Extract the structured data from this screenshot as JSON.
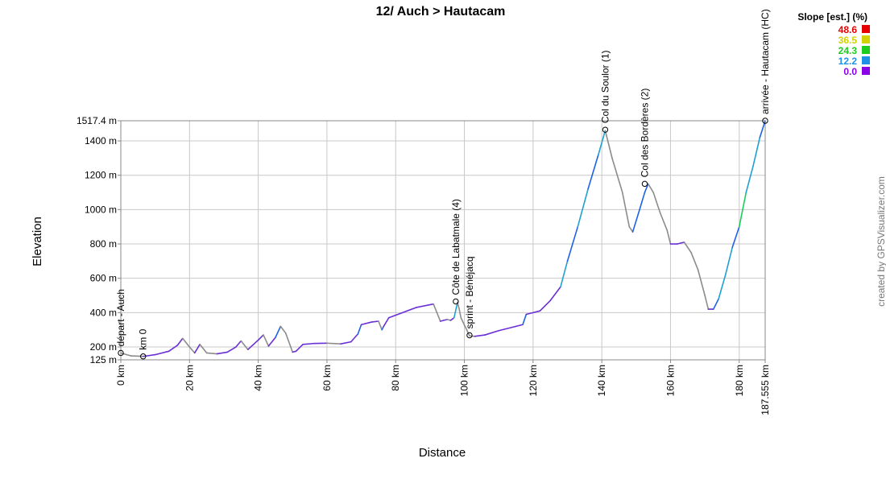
{
  "chart_data": {
    "type": "area",
    "title": "12/ Auch > Hautacam",
    "xlabel": "Distance",
    "ylabel": "Elevation",
    "xlim": [
      0,
      187.555
    ],
    "ylim": [
      125,
      1517.4
    ],
    "grid": true,
    "x_ticks": [
      {
        "value": 0,
        "label": "0 km"
      },
      {
        "value": 20,
        "label": "20 km"
      },
      {
        "value": 40,
        "label": "40 km"
      },
      {
        "value": 60,
        "label": "60 km"
      },
      {
        "value": 80,
        "label": "80 km"
      },
      {
        "value": 100,
        "label": "100 km"
      },
      {
        "value": 120,
        "label": "120 km"
      },
      {
        "value": 140,
        "label": "140 km"
      },
      {
        "value": 160,
        "label": "160 km"
      },
      {
        "value": 180,
        "label": "180 km"
      },
      {
        "value": 187.555,
        "label": "187.555 km"
      }
    ],
    "y_ticks": [
      {
        "value": 125,
        "label": "125 m"
      },
      {
        "value": 200,
        "label": "200 m"
      },
      {
        "value": 400,
        "label": "400 m"
      },
      {
        "value": 600,
        "label": "600 m"
      },
      {
        "value": 800,
        "label": "800 m"
      },
      {
        "value": 1000,
        "label": "1000 m"
      },
      {
        "value": 1200,
        "label": "1200 m"
      },
      {
        "value": 1400,
        "label": "1400 m"
      },
      {
        "value": 1517.4,
        "label": "1517.4 m"
      }
    ],
    "profile": {
      "x": [
        0,
        3,
        6.5,
        10,
        14,
        16.5,
        18,
        20,
        21.5,
        23,
        25,
        28,
        31,
        33.5,
        35,
        37,
        40,
        41.5,
        43,
        45,
        46.5,
        48,
        50,
        51,
        53,
        56,
        60,
        64,
        67,
        69,
        70,
        73,
        75,
        76,
        76.5,
        78,
        82,
        86,
        91,
        92,
        93,
        95,
        96,
        97,
        98,
        98.5,
        99,
        101.5,
        103,
        106,
        110,
        115,
        117,
        118,
        120,
        122,
        125,
        128,
        130,
        133,
        136,
        139,
        141,
        143,
        146,
        148,
        149,
        151,
        152.5,
        153.5,
        155,
        157,
        159,
        160,
        162,
        164,
        166,
        168,
        170,
        171,
        172.5,
        174,
        176,
        178,
        180,
        182,
        184,
        186,
        187.555
      ],
      "y": [
        165,
        148,
        145,
        155,
        175,
        210,
        250,
        200,
        165,
        215,
        165,
        160,
        170,
        200,
        235,
        185,
        240,
        270,
        205,
        255,
        320,
        280,
        170,
        175,
        215,
        220,
        222,
        218,
        230,
        275,
        330,
        345,
        350,
        300,
        320,
        370,
        400,
        430,
        450,
        400,
        350,
        360,
        355,
        370,
        460,
        420,
        370,
        265,
        262,
        270,
        295,
        320,
        330,
        390,
        400,
        410,
        470,
        550,
        700,
        900,
        1120,
        1320,
        1460,
        1300,
        1100,
        900,
        870,
        1000,
        1100,
        1150,
        1100,
        980,
        880,
        800,
        800,
        810,
        750,
        650,
        500,
        420,
        420,
        480,
        620,
        780,
        900,
        1100,
        1250,
        1420,
        1517
      ]
    },
    "waypoints": [
      {
        "km": 0,
        "elev": 165,
        "label": "départ - Auch"
      },
      {
        "km": 6.5,
        "elev": 145,
        "label": "km 0"
      },
      {
        "km": 97.5,
        "elev": 465,
        "label": "Côte de Labatmale (4)"
      },
      {
        "km": 101.5,
        "elev": 268,
        "label": "sprint - Bénéjacq"
      },
      {
        "km": 141,
        "elev": 1465,
        "label": "Col du Soulor (1)"
      },
      {
        "km": 152.5,
        "elev": 1150,
        "label": "Col des Bordères (2)"
      },
      {
        "km": 187.555,
        "elev": 1517.4,
        "label": "arrivée - Hautacam (HC)"
      }
    ],
    "legend": {
      "title": "Slope [est.] (%)",
      "placement": "top-right",
      "items": [
        {
          "label": "48.6",
          "color": "#e60000"
        },
        {
          "label": "36.5",
          "color": "#d2d200"
        },
        {
          "label": "24.3",
          "color": "#1ecc1e"
        },
        {
          "label": "12.2",
          "color": "#1e90e6"
        },
        {
          "label": "0.0",
          "color": "#8a00e6"
        }
      ]
    }
  },
  "credit": "created by GPSVisualizer.com"
}
